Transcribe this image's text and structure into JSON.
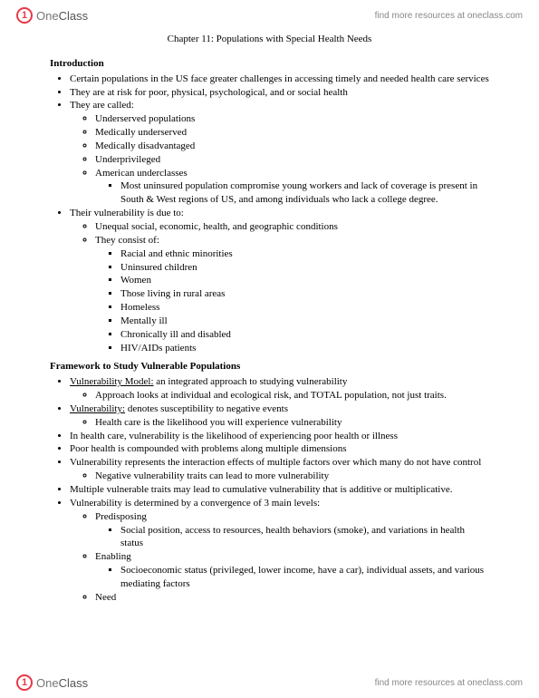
{
  "brand": {
    "icon_letter": "1",
    "name_one": "One",
    "name_class": "Class"
  },
  "header_link": "find more resources at oneclass.com",
  "footer_link": "find more resources at oneclass.com",
  "chapter_title": "Chapter 11: Populations with Special Health Needs",
  "section1": {
    "heading": "Introduction",
    "b1": "Certain populations in the US face greater challenges in accessing timely and needed health care services",
    "b2": "They are at risk for poor, physical, psychological, and or social health",
    "b3": "They are called:",
    "b3_1": "Underserved populations",
    "b3_2": "Medically underserved",
    "b3_3": "Medically disadvantaged",
    "b3_4": "Underprivileged",
    "b3_5": "American underclasses",
    "b3_5_1": "Most uninsured population compromise young workers and lack of coverage is present in South & West regions of US, and among individuals who lack a college degree.",
    "b4": "Their vulnerability is due to:",
    "b4_1": "Unequal social, economic, health, and geographic conditions",
    "b4_2": "They consist of:",
    "b4_2_1": "Racial and ethnic minorities",
    "b4_2_2": "Uninsured children",
    "b4_2_3": "Women",
    "b4_2_4": "Those living in rural areas",
    "b4_2_5": "Homeless",
    "b4_2_6": "Mentally ill",
    "b4_2_7": "Chronically ill and disabled",
    "b4_2_8": "HIV/AIDs patients"
  },
  "section2": {
    "heading": "Framework to Study Vulnerable Populations",
    "b1_term": "Vulnerability Model:",
    "b1_def": " an integrated approach to studying vulnerability",
    "b1_1": "Approach looks at individual and ecological risk, and TOTAL population, not just traits.",
    "b2_term": "Vulnerability:",
    "b2_def": " denotes susceptibility to negative events",
    "b2_1": "Health care is the likelihood you will experience vulnerability",
    "b3": "In health care, vulnerability is the likelihood of experiencing poor health or illness",
    "b4": "Poor health is compounded with problems along multiple dimensions",
    "b5": "Vulnerability represents the interaction effects of multiple factors over which many do not have control",
    "b5_1": "Negative vulnerability traits can lead to more vulnerability",
    "b6": "Multiple vulnerable traits may lead to cumulative vulnerability that is additive or multiplicative.",
    "b7": "Vulnerability is determined by a convergence of 3 main levels:",
    "b7_1": "Predisposing",
    "b7_1_1": "Social position, access to resources, health behaviors (smoke), and variations in health status",
    "b7_2": "Enabling",
    "b7_2_1": "Socioeconomic status (privileged, lower income, have a car), individual assets, and various mediating factors",
    "b7_3": "Need"
  }
}
